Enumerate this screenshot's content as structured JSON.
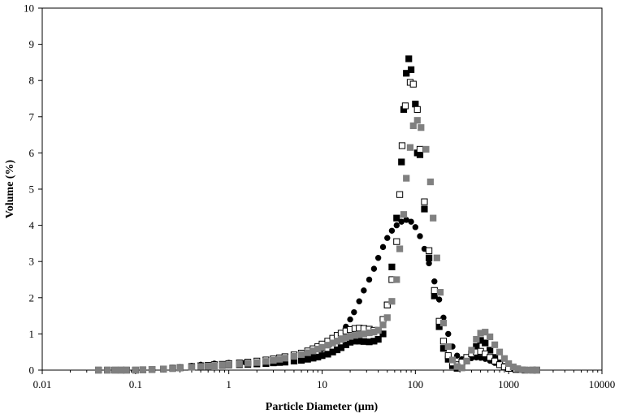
{
  "chart_data": {
    "type": "scatter",
    "title": "",
    "xlabel": "Particle Diameter (µm)",
    "ylabel": "Volume (%)",
    "xscale": "log",
    "xlim": [
      0.01,
      10000
    ],
    "ylim": [
      0,
      10
    ],
    "grid": false,
    "legend": "none",
    "x_ticks": [
      0.01,
      0.1,
      1,
      10,
      100,
      1000,
      10000
    ],
    "x_tick_labels": [
      "0.01",
      "0.1",
      "1",
      "10",
      "100",
      "1000",
      "10000"
    ],
    "y_ticks": [
      0,
      1,
      2,
      3,
      4,
      5,
      6,
      7,
      8,
      9,
      10
    ],
    "y_tick_labels": [
      "0",
      "1",
      "2",
      "3",
      "4",
      "5",
      "6",
      "7",
      "8",
      "9",
      "10"
    ],
    "series": [
      {
        "marker": "circle",
        "fill": "#000000",
        "stroke": "#000000",
        "points": [
          [
            0.04,
            0.0
          ],
          [
            0.05,
            0.0
          ],
          [
            0.06,
            0.0
          ],
          [
            0.07,
            0.0
          ],
          [
            0.08,
            0.0
          ],
          [
            0.1,
            0.0
          ],
          [
            0.12,
            0.01
          ],
          [
            0.15,
            0.02
          ],
          [
            0.2,
            0.04
          ],
          [
            0.25,
            0.06
          ],
          [
            0.3,
            0.08
          ],
          [
            0.4,
            0.12
          ],
          [
            0.5,
            0.15
          ],
          [
            0.7,
            0.18
          ],
          [
            1.0,
            0.2
          ],
          [
            1.5,
            0.21
          ],
          [
            2.0,
            0.22
          ],
          [
            3.0,
            0.24
          ],
          [
            4.0,
            0.27
          ],
          [
            5.0,
            0.31
          ],
          [
            6.0,
            0.36
          ],
          [
            7.0,
            0.41
          ],
          [
            8.0,
            0.47
          ],
          [
            10.0,
            0.58
          ],
          [
            12.0,
            0.7
          ],
          [
            14.0,
            0.85
          ],
          [
            16.0,
            1.0
          ],
          [
            18.0,
            1.2
          ],
          [
            20.0,
            1.4
          ],
          [
            22.0,
            1.6
          ],
          [
            25.0,
            1.9
          ],
          [
            28.0,
            2.2
          ],
          [
            32.0,
            2.5
          ],
          [
            36.0,
            2.8
          ],
          [
            40.0,
            3.1
          ],
          [
            45.0,
            3.4
          ],
          [
            50.0,
            3.65
          ],
          [
            56.0,
            3.85
          ],
          [
            63.0,
            4.0
          ],
          [
            71.0,
            4.1
          ],
          [
            80.0,
            4.15
          ],
          [
            90.0,
            4.1
          ],
          [
            100.0,
            3.95
          ],
          [
            112.0,
            3.7
          ],
          [
            125.0,
            3.35
          ],
          [
            140.0,
            2.95
          ],
          [
            160.0,
            2.45
          ],
          [
            180.0,
            1.95
          ],
          [
            200.0,
            1.45
          ],
          [
            225.0,
            1.0
          ],
          [
            250.0,
            0.65
          ],
          [
            280.0,
            0.4
          ],
          [
            315.0,
            0.3
          ],
          [
            355.0,
            0.3
          ],
          [
            400.0,
            0.33
          ],
          [
            450.0,
            0.35
          ],
          [
            500.0,
            0.34
          ],
          [
            560.0,
            0.31
          ],
          [
            630.0,
            0.26
          ],
          [
            710.0,
            0.2
          ],
          [
            800.0,
            0.14
          ],
          [
            900.0,
            0.09
          ],
          [
            1000.0,
            0.05
          ],
          [
            1120.0,
            0.03
          ],
          [
            1250.0,
            0.01
          ],
          [
            1400.0,
            0.0
          ],
          [
            1600.0,
            0.0
          ],
          [
            1800.0,
            0.0
          ],
          [
            2000.0,
            0.0
          ]
        ]
      },
      {
        "marker": "square",
        "fill": "#000000",
        "stroke": "#000000",
        "points": [
          [
            0.04,
            0.0
          ],
          [
            0.05,
            0.0
          ],
          [
            0.06,
            0.0
          ],
          [
            0.07,
            0.0
          ],
          [
            0.08,
            0.0
          ],
          [
            0.1,
            0.0
          ],
          [
            0.12,
            0.01
          ],
          [
            0.15,
            0.02
          ],
          [
            0.2,
            0.03
          ],
          [
            0.25,
            0.05
          ],
          [
            0.3,
            0.06
          ],
          [
            0.4,
            0.08
          ],
          [
            0.5,
            0.1
          ],
          [
            0.6,
            0.11
          ],
          [
            0.7,
            0.12
          ],
          [
            0.85,
            0.13
          ],
          [
            1.0,
            0.14
          ],
          [
            1.3,
            0.15
          ],
          [
            1.6,
            0.16
          ],
          [
            2.0,
            0.17
          ],
          [
            2.5,
            0.18
          ],
          [
            3.0,
            0.2
          ],
          [
            3.5,
            0.21
          ],
          [
            4.0,
            0.22
          ],
          [
            5.0,
            0.25
          ],
          [
            6.0,
            0.27
          ],
          [
            7.0,
            0.3
          ],
          [
            8.0,
            0.33
          ],
          [
            9.0,
            0.36
          ],
          [
            10.0,
            0.4
          ],
          [
            11.5,
            0.44
          ],
          [
            13.0,
            0.5
          ],
          [
            14.5,
            0.56
          ],
          [
            16.0,
            0.62
          ],
          [
            18.0,
            0.7
          ],
          [
            20.0,
            0.77
          ],
          [
            22.5,
            0.8
          ],
          [
            25.0,
            0.8
          ],
          [
            28.0,
            0.79
          ],
          [
            32.0,
            0.78
          ],
          [
            36.0,
            0.8
          ],
          [
            40.0,
            0.85
          ],
          [
            45.0,
            1.0
          ],
          [
            50.0,
            1.8
          ],
          [
            56.0,
            2.85
          ],
          [
            63.0,
            4.2
          ],
          [
            71.0,
            5.75
          ],
          [
            75.0,
            7.2
          ],
          [
            80.0,
            8.2
          ],
          [
            85.0,
            8.6
          ],
          [
            90.0,
            8.3
          ],
          [
            100.0,
            7.35
          ],
          [
            105.0,
            6.0
          ],
          [
            112.0,
            5.95
          ],
          [
            125.0,
            4.45
          ],
          [
            140.0,
            3.1
          ],
          [
            160.0,
            2.05
          ],
          [
            180.0,
            1.2
          ],
          [
            200.0,
            0.6
          ],
          [
            225.0,
            0.3
          ],
          [
            250.0,
            0.12
          ],
          [
            280.0,
            0.05
          ],
          [
            315.0,
            0.1
          ],
          [
            355.0,
            0.25
          ],
          [
            400.0,
            0.45
          ],
          [
            450.0,
            0.65
          ],
          [
            500.0,
            0.82
          ],
          [
            560.0,
            0.75
          ],
          [
            630.0,
            0.55
          ],
          [
            710.0,
            0.35
          ],
          [
            800.0,
            0.2
          ],
          [
            900.0,
            0.1
          ],
          [
            1000.0,
            0.05
          ],
          [
            1200.0,
            0.02
          ],
          [
            1500.0,
            0.0
          ],
          [
            1800.0,
            0.0
          ],
          [
            2000.0,
            0.0
          ]
        ]
      },
      {
        "marker": "square",
        "fill": "#ffffff",
        "stroke": "#000000",
        "points": [
          [
            0.04,
            0.0
          ],
          [
            0.05,
            0.0
          ],
          [
            0.06,
            0.0
          ],
          [
            0.07,
            0.0
          ],
          [
            0.08,
            0.0
          ],
          [
            0.1,
            0.0
          ],
          [
            0.12,
            0.01
          ],
          [
            0.15,
            0.02
          ],
          [
            0.2,
            0.03
          ],
          [
            0.25,
            0.05
          ],
          [
            0.3,
            0.07
          ],
          [
            0.4,
            0.1
          ],
          [
            0.5,
            0.12
          ],
          [
            0.6,
            0.13
          ],
          [
            0.7,
            0.15
          ],
          [
            0.85,
            0.16
          ],
          [
            1.0,
            0.18
          ],
          [
            1.3,
            0.2
          ],
          [
            1.6,
            0.22
          ],
          [
            2.0,
            0.25
          ],
          [
            2.5,
            0.28
          ],
          [
            3.0,
            0.31
          ],
          [
            3.5,
            0.34
          ],
          [
            4.0,
            0.37
          ],
          [
            5.0,
            0.42
          ],
          [
            6.0,
            0.47
          ],
          [
            7.0,
            0.53
          ],
          [
            8.0,
            0.59
          ],
          [
            9.0,
            0.65
          ],
          [
            10.0,
            0.72
          ],
          [
            11.5,
            0.8
          ],
          [
            13.0,
            0.88
          ],
          [
            14.5,
            0.96
          ],
          [
            16.0,
            1.02
          ],
          [
            18.0,
            1.08
          ],
          [
            20.0,
            1.12
          ],
          [
            22.5,
            1.15
          ],
          [
            25.0,
            1.16
          ],
          [
            28.0,
            1.15
          ],
          [
            32.0,
            1.13
          ],
          [
            36.0,
            1.1
          ],
          [
            40.0,
            1.1
          ],
          [
            45.0,
            1.4
          ],
          [
            50.0,
            1.8
          ],
          [
            56.0,
            2.5
          ],
          [
            63.0,
            3.55
          ],
          [
            68.0,
            4.85
          ],
          [
            72.0,
            6.2
          ],
          [
            78.0,
            7.3
          ],
          [
            88.0,
            7.95
          ],
          [
            95.0,
            7.9
          ],
          [
            105.0,
            7.2
          ],
          [
            112.0,
            6.1
          ],
          [
            125.0,
            4.65
          ],
          [
            140.0,
            3.3
          ],
          [
            160.0,
            2.2
          ],
          [
            180.0,
            1.35
          ],
          [
            200.0,
            0.8
          ],
          [
            225.0,
            0.4
          ],
          [
            250.0,
            0.2
          ],
          [
            280.0,
            0.15
          ],
          [
            315.0,
            0.22
          ],
          [
            355.0,
            0.35
          ],
          [
            400.0,
            0.45
          ],
          [
            450.0,
            0.5
          ],
          [
            500.0,
            0.52
          ],
          [
            560.0,
            0.45
          ],
          [
            630.0,
            0.35
          ],
          [
            710.0,
            0.25
          ],
          [
            800.0,
            0.15
          ],
          [
            900.0,
            0.09
          ],
          [
            1000.0,
            0.05
          ],
          [
            1200.0,
            0.02
          ],
          [
            1500.0,
            0.0
          ],
          [
            1800.0,
            0.0
          ],
          [
            2000.0,
            0.0
          ]
        ]
      },
      {
        "marker": "square",
        "fill": "#808080",
        "stroke": "#808080",
        "points": [
          [
            0.04,
            0.0
          ],
          [
            0.05,
            0.0
          ],
          [
            0.06,
            0.0
          ],
          [
            0.07,
            0.0
          ],
          [
            0.08,
            0.0
          ],
          [
            0.1,
            0.0
          ],
          [
            0.12,
            0.01
          ],
          [
            0.15,
            0.02
          ],
          [
            0.2,
            0.03
          ],
          [
            0.25,
            0.04
          ],
          [
            0.3,
            0.06
          ],
          [
            0.4,
            0.08
          ],
          [
            0.5,
            0.1
          ],
          [
            0.6,
            0.11
          ],
          [
            0.7,
            0.12
          ],
          [
            0.85,
            0.14
          ],
          [
            1.0,
            0.15
          ],
          [
            1.3,
            0.17
          ],
          [
            1.6,
            0.19
          ],
          [
            2.0,
            0.21
          ],
          [
            2.5,
            0.24
          ],
          [
            3.0,
            0.27
          ],
          [
            3.5,
            0.3
          ],
          [
            4.0,
            0.33
          ],
          [
            5.0,
            0.38
          ],
          [
            6.0,
            0.43
          ],
          [
            7.0,
            0.48
          ],
          [
            8.0,
            0.53
          ],
          [
            9.0,
            0.58
          ],
          [
            10.0,
            0.63
          ],
          [
            11.5,
            0.69
          ],
          [
            13.0,
            0.75
          ],
          [
            14.5,
            0.8
          ],
          [
            16.0,
            0.85
          ],
          [
            18.0,
            0.9
          ],
          [
            20.0,
            0.93
          ],
          [
            22.5,
            0.96
          ],
          [
            25.0,
            0.98
          ],
          [
            28.0,
            1.0
          ],
          [
            32.0,
            1.03
          ],
          [
            36.0,
            1.05
          ],
          [
            40.0,
            1.1
          ],
          [
            45.0,
            1.25
          ],
          [
            50.0,
            1.45
          ],
          [
            56.0,
            1.9
          ],
          [
            63.0,
            2.5
          ],
          [
            68.0,
            3.35
          ],
          [
            75.0,
            4.3
          ],
          [
            80.0,
            5.3
          ],
          [
            88.0,
            6.15
          ],
          [
            95.0,
            6.75
          ],
          [
            105.0,
            6.9
          ],
          [
            115.0,
            6.7
          ],
          [
            130.0,
            6.1
          ],
          [
            145.0,
            5.2
          ],
          [
            155.0,
            4.2
          ],
          [
            170.0,
            3.1
          ],
          [
            185.0,
            2.15
          ],
          [
            200.0,
            1.3
          ],
          [
            225.0,
            0.65
          ],
          [
            250.0,
            0.28
          ],
          [
            280.0,
            0.1
          ],
          [
            315.0,
            0.06
          ],
          [
            355.0,
            0.25
          ],
          [
            400.0,
            0.55
          ],
          [
            450.0,
            0.85
          ],
          [
            500.0,
            1.02
          ],
          [
            560.0,
            1.05
          ],
          [
            630.0,
            0.92
          ],
          [
            710.0,
            0.7
          ],
          [
            800.0,
            0.5
          ],
          [
            900.0,
            0.32
          ],
          [
            1000.0,
            0.18
          ],
          [
            1120.0,
            0.09
          ],
          [
            1250.0,
            0.04
          ],
          [
            1400.0,
            0.01
          ],
          [
            1600.0,
            0.0
          ],
          [
            1800.0,
            0.0
          ],
          [
            2000.0,
            0.0
          ]
        ]
      }
    ]
  }
}
